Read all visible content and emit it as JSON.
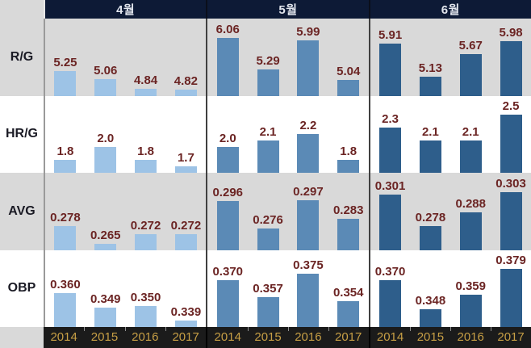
{
  "header": {
    "months": [
      "4월",
      "5월",
      "6월"
    ]
  },
  "row_labels": [
    "R/G",
    "HR/G",
    "AVG",
    "OBP"
  ],
  "colors": {
    "bar_colors": [
      "#9dc3e6",
      "#5b8ab6",
      "#2e5e8b"
    ],
    "header_bg": "#0d1a36",
    "header_text": "#e2e6ee",
    "gray_row_bg": "#d9d9d9",
    "white_row_bg": "#ffffff",
    "value_label": "#6b2423",
    "axis_band_bg": "#1b1b1b",
    "year_label": "#c79f45"
  },
  "chart_data": {
    "type": "bar",
    "title": "",
    "groups": [
      "4월",
      "5월",
      "6월"
    ],
    "categories": [
      "2014",
      "2015",
      "2016",
      "2017"
    ],
    "legend_position": "none",
    "grid": false,
    "metrics": [
      {
        "name": "R/G",
        "decimals": 2,
        "series": [
          {
            "group": "4월",
            "values": [
              5.25,
              5.06,
              4.84,
              4.82
            ]
          },
          {
            "group": "5월",
            "values": [
              6.06,
              5.29,
              5.99,
              5.04
            ]
          },
          {
            "group": "6월",
            "values": [
              5.91,
              5.13,
              5.67,
              5.98
            ]
          }
        ]
      },
      {
        "name": "HR/G",
        "decimals": 1,
        "series": [
          {
            "group": "4월",
            "values": [
              1.8,
              2.0,
              1.8,
              1.7
            ]
          },
          {
            "group": "5월",
            "values": [
              2.0,
              2.1,
              2.2,
              1.8
            ]
          },
          {
            "group": "6월",
            "values": [
              2.3,
              2.1,
              2.1,
              2.5
            ]
          }
        ]
      },
      {
        "name": "AVG",
        "decimals": 3,
        "series": [
          {
            "group": "4월",
            "values": [
              0.278,
              0.265,
              0.272,
              0.272
            ]
          },
          {
            "group": "5월",
            "values": [
              0.296,
              0.276,
              0.297,
              0.283
            ]
          },
          {
            "group": "6월",
            "values": [
              0.301,
              0.278,
              0.288,
              0.303
            ]
          }
        ]
      },
      {
        "name": "OBP",
        "decimals": 3,
        "series": [
          {
            "group": "4월",
            "values": [
              0.36,
              0.349,
              0.35,
              0.339
            ]
          },
          {
            "group": "5월",
            "values": [
              0.37,
              0.357,
              0.375,
              0.354
            ]
          },
          {
            "group": "6월",
            "values": [
              0.37,
              0.348,
              0.359,
              0.379
            ]
          }
        ]
      }
    ]
  }
}
